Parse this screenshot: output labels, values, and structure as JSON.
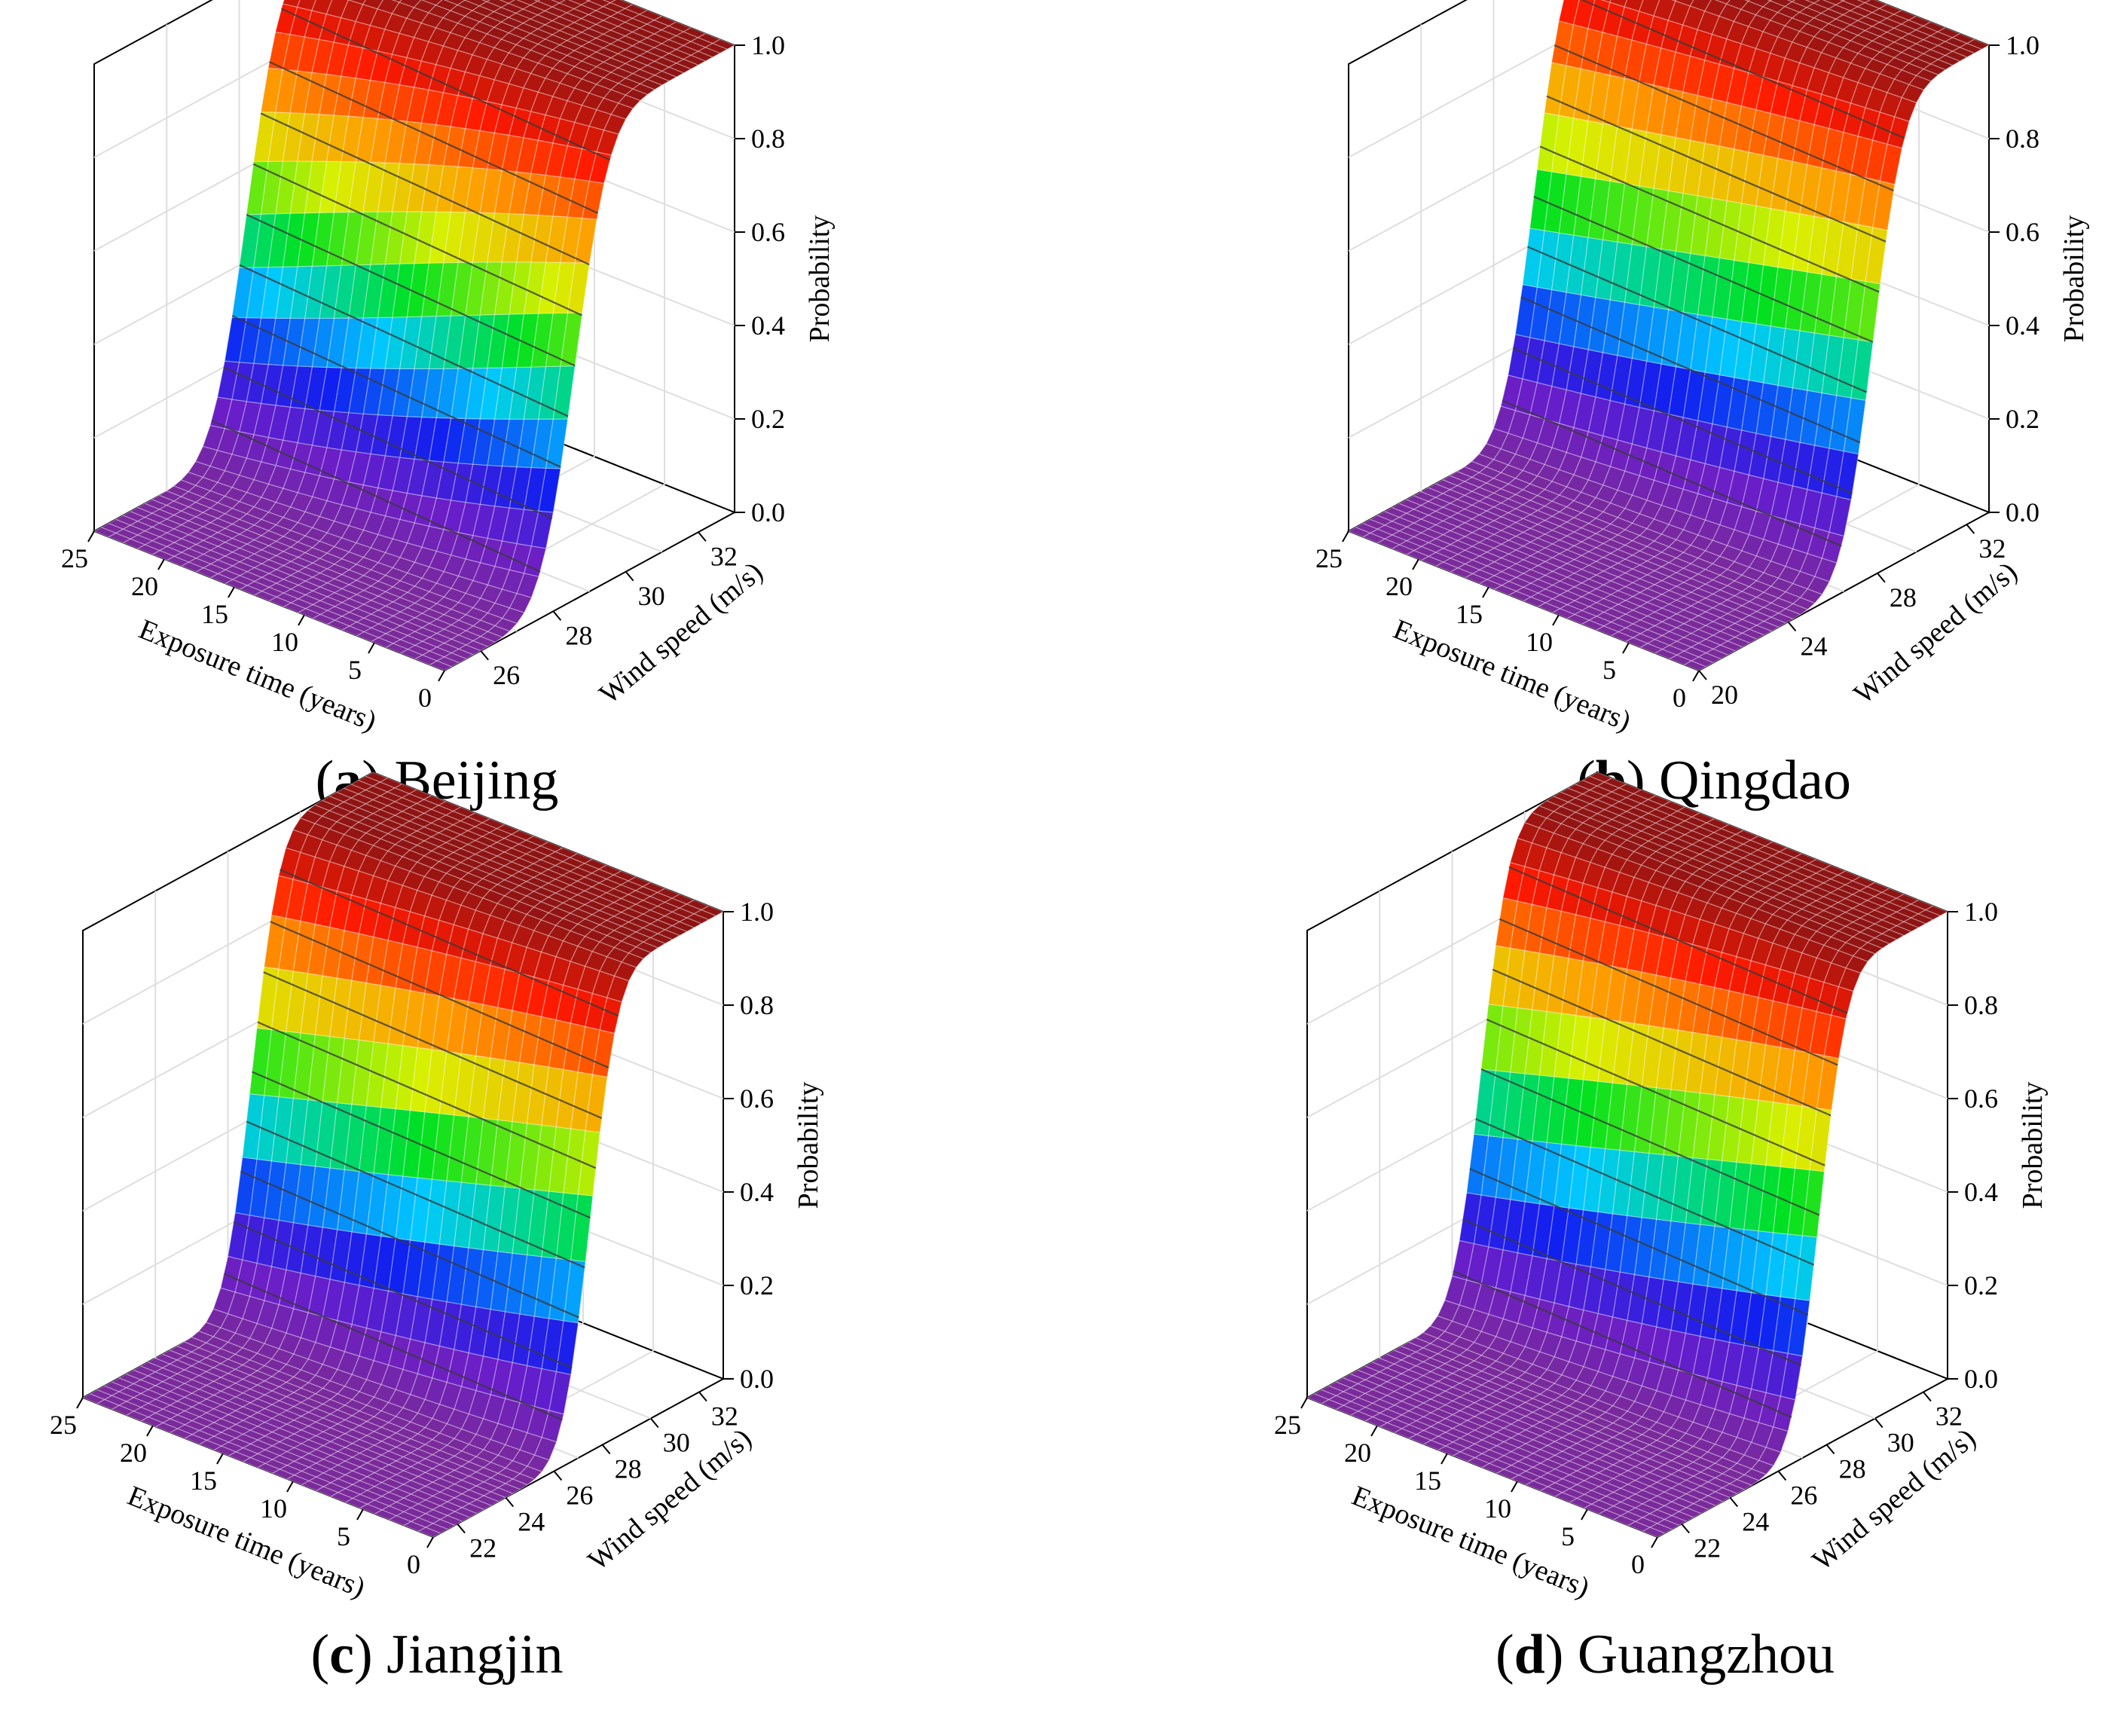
{
  "figure_type": "3D surface plots",
  "colorscale": [
    "#7a2a9a",
    "#6a1ec8",
    "#1020f0",
    "#00c8ff",
    "#00e020",
    "#d8f000",
    "#ff9a00",
    "#ff1a00",
    "#8e1414"
  ],
  "chart_data": [
    {
      "type": "surface3d",
      "panel_label": "a",
      "caption": "Beijing",
      "xlabel": "Exposure time (years)",
      "ylabel": "Wind speed (m/s)",
      "zlabel": "Probability",
      "x_ticks": [
        "0",
        "5",
        "10",
        "15",
        "20",
        "25"
      ],
      "y_ticks": [
        "26",
        "28",
        "30",
        "32"
      ],
      "z_ticks": [
        "0.0",
        "0.2",
        "0.4",
        "0.6",
        "0.8",
        "1.0"
      ],
      "xlim": [
        0,
        25
      ],
      "ylim": [
        25,
        33
      ],
      "zlim": [
        0,
        1
      ],
      "cdf_mean_t0": 28.6,
      "cdf_mean_t25": 29.2,
      "cdf_spread": 0.75
    },
    {
      "type": "surface3d",
      "panel_label": "b",
      "caption": "Qingdao",
      "xlabel": "Exposure time (years)",
      "ylabel": "Wind speed (m/s)",
      "zlabel": "Probability",
      "x_ticks": [
        "0",
        "5",
        "10",
        "15",
        "20",
        "25"
      ],
      "y_ticks": [
        "20",
        "24",
        "28",
        "32"
      ],
      "z_ticks": [
        "0.0",
        "0.2",
        "0.4",
        "0.6",
        "0.8",
        "1.0"
      ],
      "xlim": [
        0,
        25
      ],
      "ylim": [
        20,
        33
      ],
      "zlim": [
        0,
        1
      ],
      "cdf_mean_t0": 27.8,
      "cdf_mean_t25": 28.3,
      "cdf_spread": 1.1
    },
    {
      "type": "surface3d",
      "panel_label": "c",
      "caption": "Jiangjin",
      "xlabel": "Exposure time (years)",
      "ylabel": "Wind speed (m/s)",
      "zlabel": "Probability",
      "x_ticks": [
        "0",
        "5",
        "10",
        "15",
        "20",
        "25"
      ],
      "y_ticks": [
        "22",
        "24",
        "26",
        "28",
        "30",
        "32"
      ],
      "z_ticks": [
        "0.0",
        "0.2",
        "0.4",
        "0.6",
        "0.8",
        "1.0"
      ],
      "xlim": [
        0,
        25
      ],
      "ylim": [
        21,
        33
      ],
      "zlim": [
        0,
        1
      ],
      "cdf_mean_t0": 27.5,
      "cdf_mean_t25": 28.0,
      "cdf_spread": 0.9
    },
    {
      "type": "surface3d",
      "panel_label": "d",
      "caption": "Guangzhou",
      "xlabel": "Exposure time (years)",
      "ylabel": "Wind speed (m/s)",
      "zlabel": "Probability",
      "x_ticks": [
        "0",
        "5",
        "10",
        "15",
        "20",
        "25"
      ],
      "y_ticks": [
        "22",
        "24",
        "26",
        "28",
        "30",
        "32"
      ],
      "z_ticks": [
        "0.0",
        "0.2",
        "0.4",
        "0.6",
        "0.8",
        "1.0"
      ],
      "xlim": [
        0,
        25
      ],
      "ylim": [
        21,
        33
      ],
      "zlim": [
        0,
        1
      ],
      "cdf_mean_t0": 27.7,
      "cdf_mean_t25": 28.2,
      "cdf_spread": 0.9
    }
  ]
}
